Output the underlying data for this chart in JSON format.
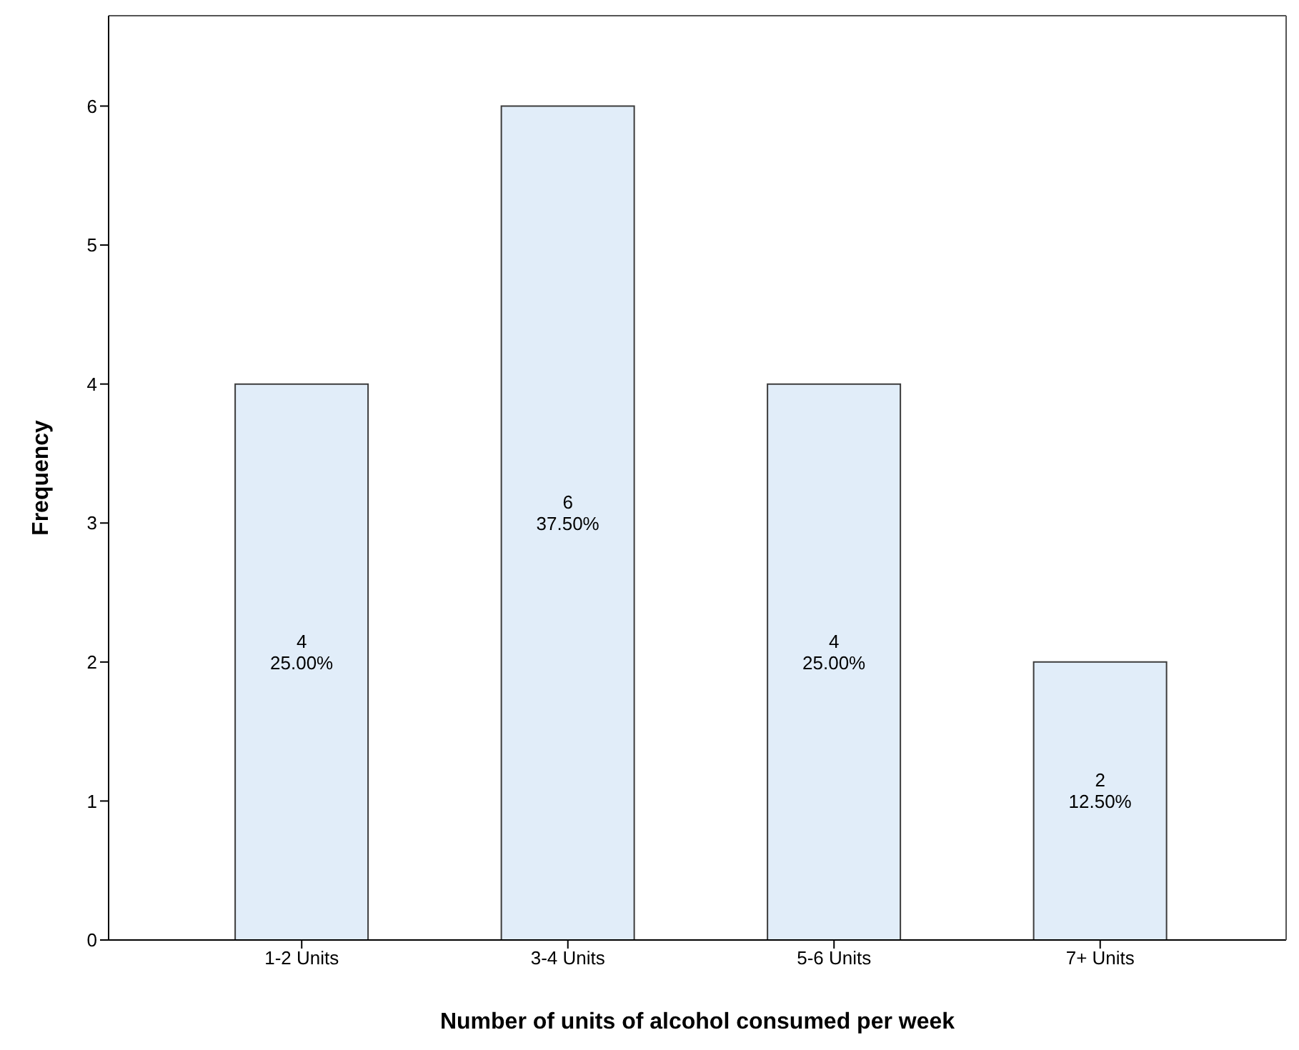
{
  "chart_data": {
    "type": "bar",
    "xlabel": "Number of units of alcohol consumed per week",
    "ylabel": "Frequency",
    "categories": [
      "1-2 Units",
      "3-4 Units",
      "5-6 Units",
      "7+ Units"
    ],
    "values": [
      4,
      6,
      4,
      2
    ],
    "color": "#e1edf9",
    "value_labels": [
      "4\n25.00%",
      "6\n37.50%",
      "4\n25.00%",
      "2\n12.50%"
    ],
    "ylim": [
      0,
      6.65
    ],
    "yticks": [
      0,
      1,
      2,
      3,
      4,
      5,
      6
    ],
    "grid": false,
    "legend": false
  }
}
